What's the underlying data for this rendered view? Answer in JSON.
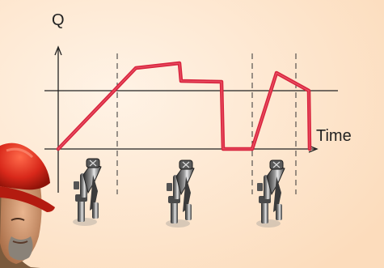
{
  "diagram": {
    "y_axis_label": "Q",
    "x_axis_label": "Time",
    "valve_count": 3,
    "colors": {
      "background": "#fde4c8",
      "flow_line": "#d8253e",
      "flow_line_highlight": "#ee5a6e",
      "axes": "#222222",
      "reference_line": "#222222",
      "phase_divider": "#333333"
    },
    "icons": [
      "valve-icon",
      "worker-hardhat-icon"
    ]
  }
}
